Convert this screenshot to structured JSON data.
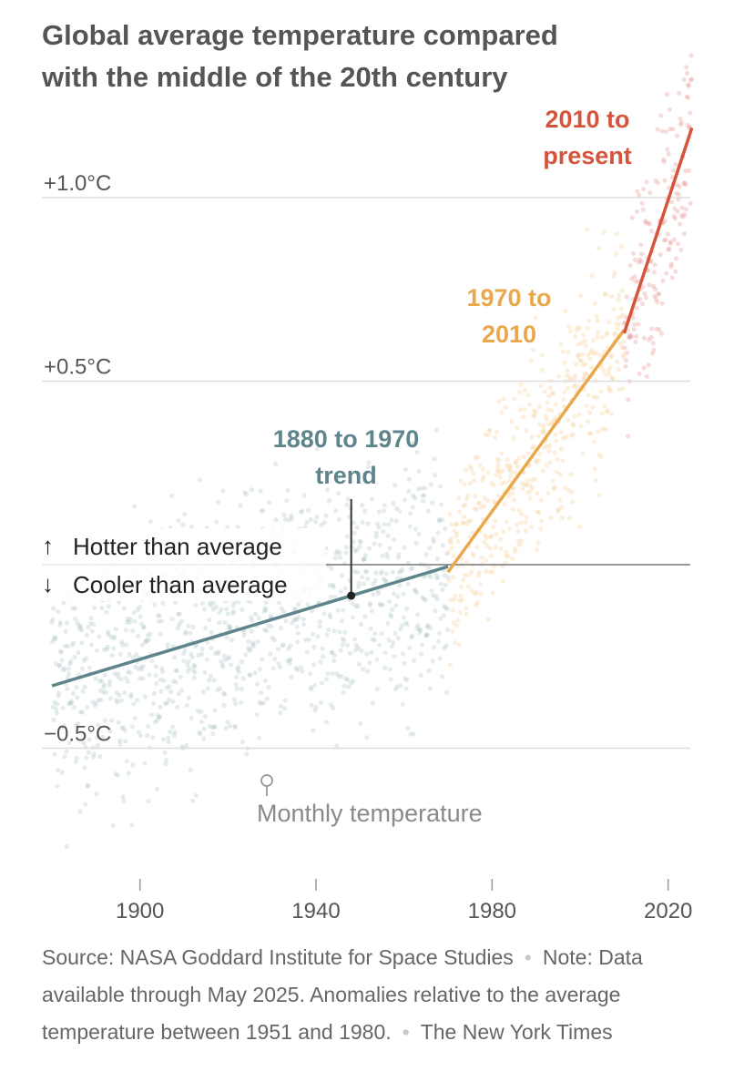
{
  "title_lines": [
    "Global average temperature compared",
    "with the middle of the 20th century"
  ],
  "chart_data": {
    "type": "scatter",
    "x_axis": {
      "range": [
        1876,
        2026
      ],
      "ticks": [
        1900,
        1940,
        1980,
        2020
      ],
      "tick_labels": [
        "1900",
        "1940",
        "1980",
        "2020"
      ]
    },
    "y_axis": {
      "range": [
        -0.85,
        1.1
      ],
      "ticks": [
        1.0,
        0.5,
        -0.5
      ],
      "tick_labels": [
        "+1.0°C",
        "+0.5°C",
        "−0.5°C"
      ],
      "zero_line": true,
      "grid": true
    },
    "zero_labels": {
      "hotter": "Hotter than average",
      "cooler": "Cooler than average"
    },
    "points_label": "Monthly temperature",
    "trends": [
      {
        "name": "1880 to 1970 trend",
        "label_lines": [
          "1880 to 1970",
          "trend"
        ],
        "color": "#5f858c",
        "x": [
          1880,
          1970
        ],
        "y": [
          -0.33,
          -0.005
        ]
      },
      {
        "name": "1970 to 2010",
        "label_lines": [
          "1970 to",
          "2010"
        ],
        "color": "#e9a84b",
        "x": [
          1970,
          2010
        ],
        "y": [
          -0.02,
          0.64
        ]
      },
      {
        "name": "2010 to present",
        "label_lines": [
          "2010 to",
          "present"
        ],
        "color": "#d4553c",
        "x": [
          2010,
          2025.4
        ],
        "y": [
          0.63,
          1.19
        ]
      }
    ],
    "periods": [
      {
        "from": 1880,
        "to": 1970,
        "color": "#a9c1c4"
      },
      {
        "from": 1970,
        "to": 2010,
        "color": "#f4c98e"
      },
      {
        "from": 2010,
        "to": 2025.4,
        "color": "#e89a9a"
      }
    ]
  },
  "footer": {
    "source": "Source: NASA Goddard Institute for Space Studies",
    "note": "Note: Data available through May 2025. Anomalies relative to the average temperature between 1951 and 1980.",
    "credit": "The New York Times"
  }
}
